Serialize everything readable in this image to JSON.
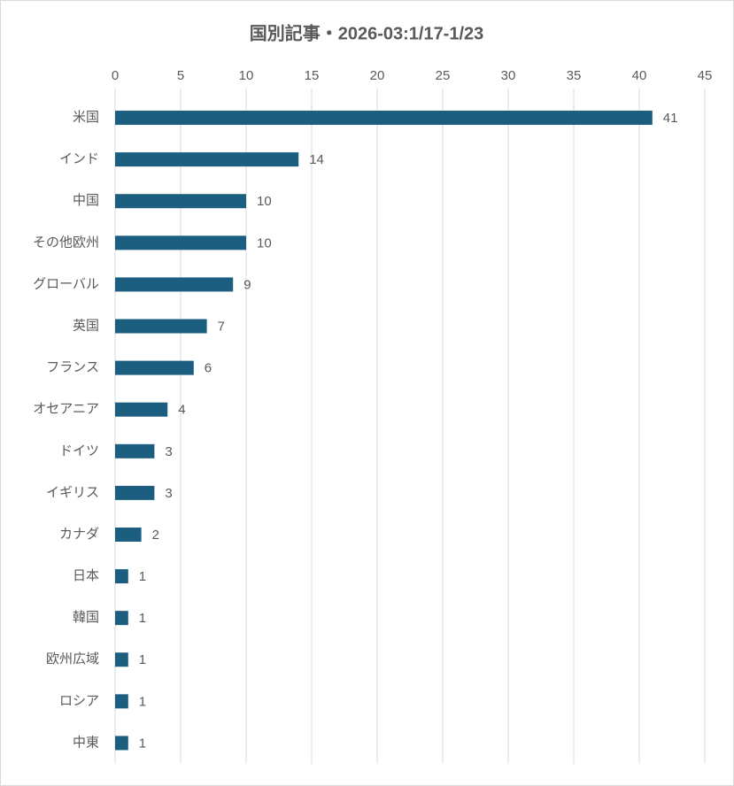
{
  "chart_data": {
    "type": "bar",
    "orientation": "horizontal",
    "title": "国別記事・2026-03:1/17-1/23",
    "categories": [
      "米国",
      "インド",
      "中国",
      "その他欧州",
      "グローバル",
      "英国",
      "フランス",
      "オセアニア",
      "ドイツ",
      "イギリス",
      "カナダ",
      "日本",
      "韓国",
      "欧州広域",
      "ロシア",
      "中東"
    ],
    "values": [
      41,
      14,
      10,
      10,
      9,
      7,
      6,
      4,
      3,
      3,
      2,
      1,
      1,
      1,
      1,
      1
    ],
    "color": "#1b5e80",
    "xlim": [
      0,
      45
    ],
    "xticks": [
      0,
      5,
      10,
      15,
      20,
      25,
      30,
      35,
      40,
      45
    ],
    "grid": true
  }
}
